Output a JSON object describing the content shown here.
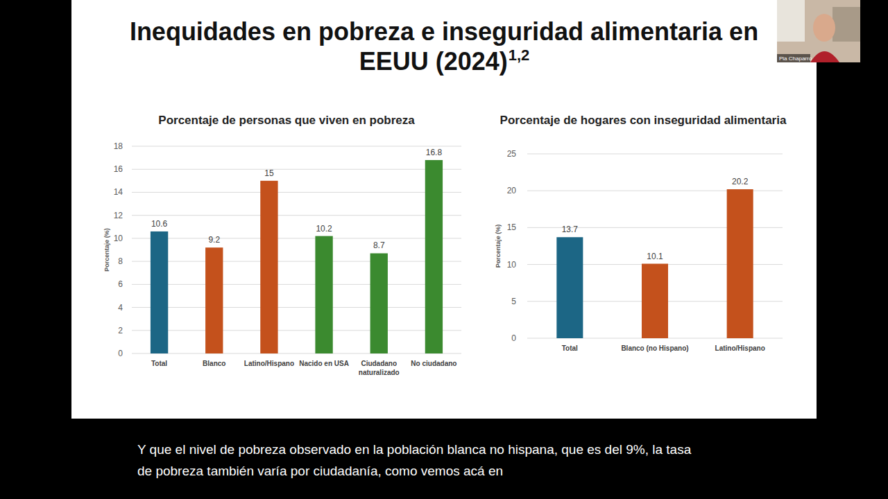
{
  "slide": {
    "title": "Inequidades en pobreza e inseguridad alimentaria en EEUU (2024)",
    "title_superscript": "1,2",
    "presenter": "Pia Chaparro",
    "caption_lines": [
      "Y que el nivel de pobreza observado en la población blanca no hispana, que es del 9%, la tasa",
      "de pobreza también varía por ciudadanía, como vemos acá en"
    ]
  },
  "chart_data": [
    {
      "type": "bar",
      "title": "Porcentaje de personas que viven en pobreza",
      "ylabel": "Porcentaje (%)",
      "categories": [
        "Total",
        "Blanco",
        "Latino/Hispano",
        "Nacido en USA",
        "Ciudadano naturalizado",
        "No ciudadano"
      ],
      "values": [
        10.6,
        9.2,
        15,
        10.2,
        8.7,
        16.8
      ],
      "colors": [
        "#1c6685",
        "#c4511c",
        "#c4511c",
        "#3b8a2f",
        "#3b8a2f",
        "#3b8a2f"
      ],
      "ylim": [
        0,
        18
      ],
      "yticks": [
        0,
        2,
        4,
        6,
        8,
        10,
        12,
        14,
        16,
        18
      ],
      "grid": true,
      "data_labels": true
    },
    {
      "type": "bar",
      "title": "Porcentaje de hogares con inseguridad alimentaria",
      "ylabel": "Porcentaje (%)",
      "categories": [
        "Total",
        "Blanco (no Hispano)",
        "Latino/Hispano"
      ],
      "values": [
        13.7,
        10.1,
        20.2
      ],
      "colors": [
        "#1c6685",
        "#c4511c",
        "#c4511c"
      ],
      "ylim": [
        0,
        25
      ],
      "yticks": [
        0,
        5,
        10,
        15,
        20,
        25
      ],
      "grid": true,
      "data_labels": true
    }
  ]
}
